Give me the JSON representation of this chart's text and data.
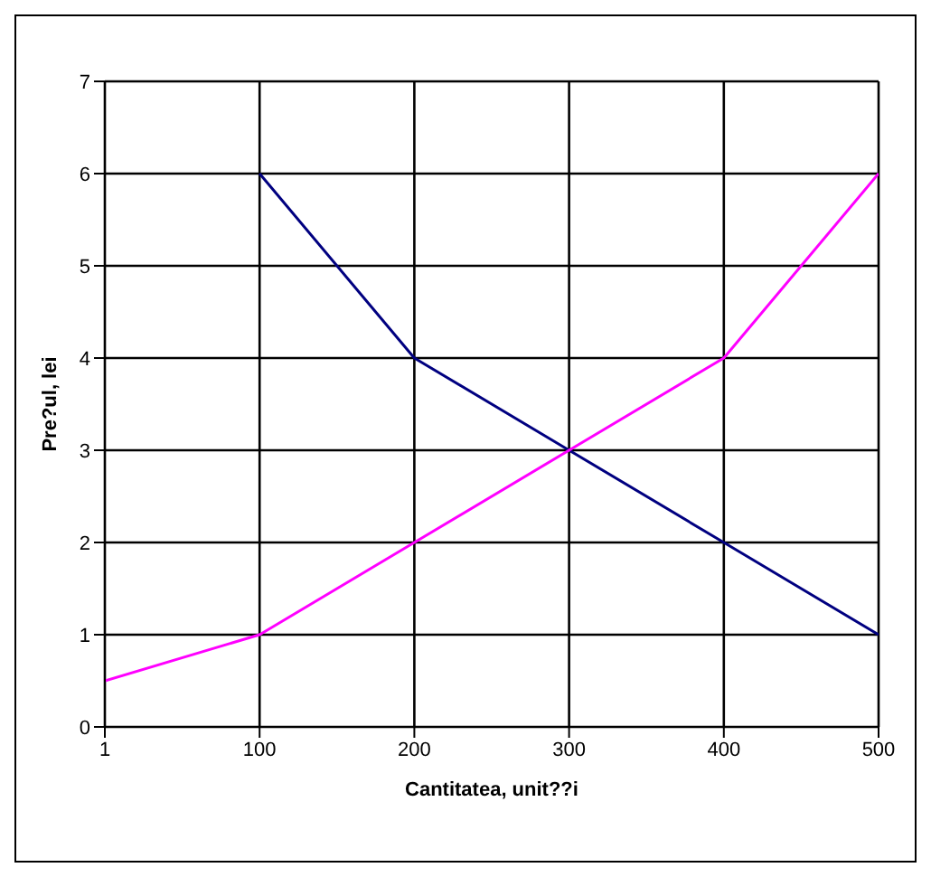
{
  "chart_data": {
    "type": "line",
    "xlabel": "Cantitatea, unit??i",
    "ylabel": "Pre?ul, lei",
    "categories": [
      "1",
      "100",
      "200",
      "300",
      "400",
      "500"
    ],
    "series": [
      {
        "color": "#000080",
        "values": [
          null,
          6,
          4,
          3,
          2,
          1
        ]
      },
      {
        "color": "#ff00ff",
        "values": [
          0.5,
          1,
          2,
          3,
          4,
          6
        ]
      }
    ],
    "ylim": [
      0,
      7
    ],
    "yticks": [
      0,
      1,
      2,
      3,
      4,
      5,
      6,
      7
    ],
    "grid": true,
    "legend": false,
    "marker": "none",
    "line_style": "solid"
  }
}
